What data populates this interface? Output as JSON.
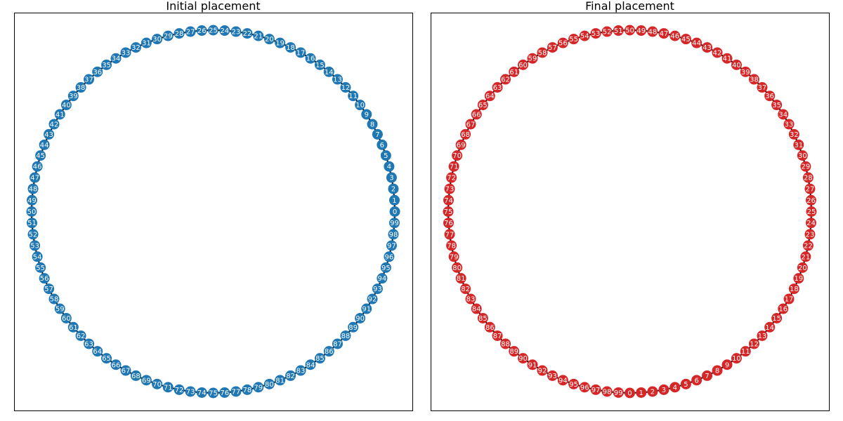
{
  "panels": [
    {
      "title": "Initial placement",
      "node_color": "#1f77b4",
      "label_color": "#ffffff",
      "edge_color": "#000000",
      "node_count": 100,
      "start_label": 0,
      "direction": "counterclockwise",
      "start_position": "right"
    },
    {
      "title": "Final placement",
      "node_color": "#d62728",
      "label_color": "#ffffff",
      "edge_color": "#000000",
      "node_count": 100,
      "start_label": 0,
      "direction": "counterclockwise",
      "start_position": "bottom"
    }
  ],
  "chart_data": {
    "type": "graph",
    "graph": "cycle",
    "nodes": [
      0,
      1,
      2,
      3,
      4,
      5,
      6,
      7,
      8,
      9,
      10,
      11,
      12,
      13,
      14,
      15,
      16,
      17,
      18,
      19,
      20,
      21,
      22,
      23,
      24,
      25,
      26,
      27,
      28,
      29,
      30,
      31,
      32,
      33,
      34,
      35,
      36,
      37,
      38,
      39,
      40,
      41,
      42,
      43,
      44,
      45,
      46,
      47,
      48,
      49,
      50,
      51,
      52,
      53,
      54,
      55,
      56,
      57,
      58,
      59,
      60,
      61,
      62,
      63,
      64,
      65,
      66,
      67,
      68,
      69,
      70,
      71,
      72,
      73,
      74,
      75,
      76,
      77,
      78,
      79,
      80,
      81,
      82,
      83,
      84,
      85,
      86,
      87,
      88,
      89,
      90,
      91,
      92,
      93,
      94,
      95,
      96,
      97,
      98,
      99
    ],
    "edges": "consecutive nodes connected, 99 connected back to 0"
  }
}
